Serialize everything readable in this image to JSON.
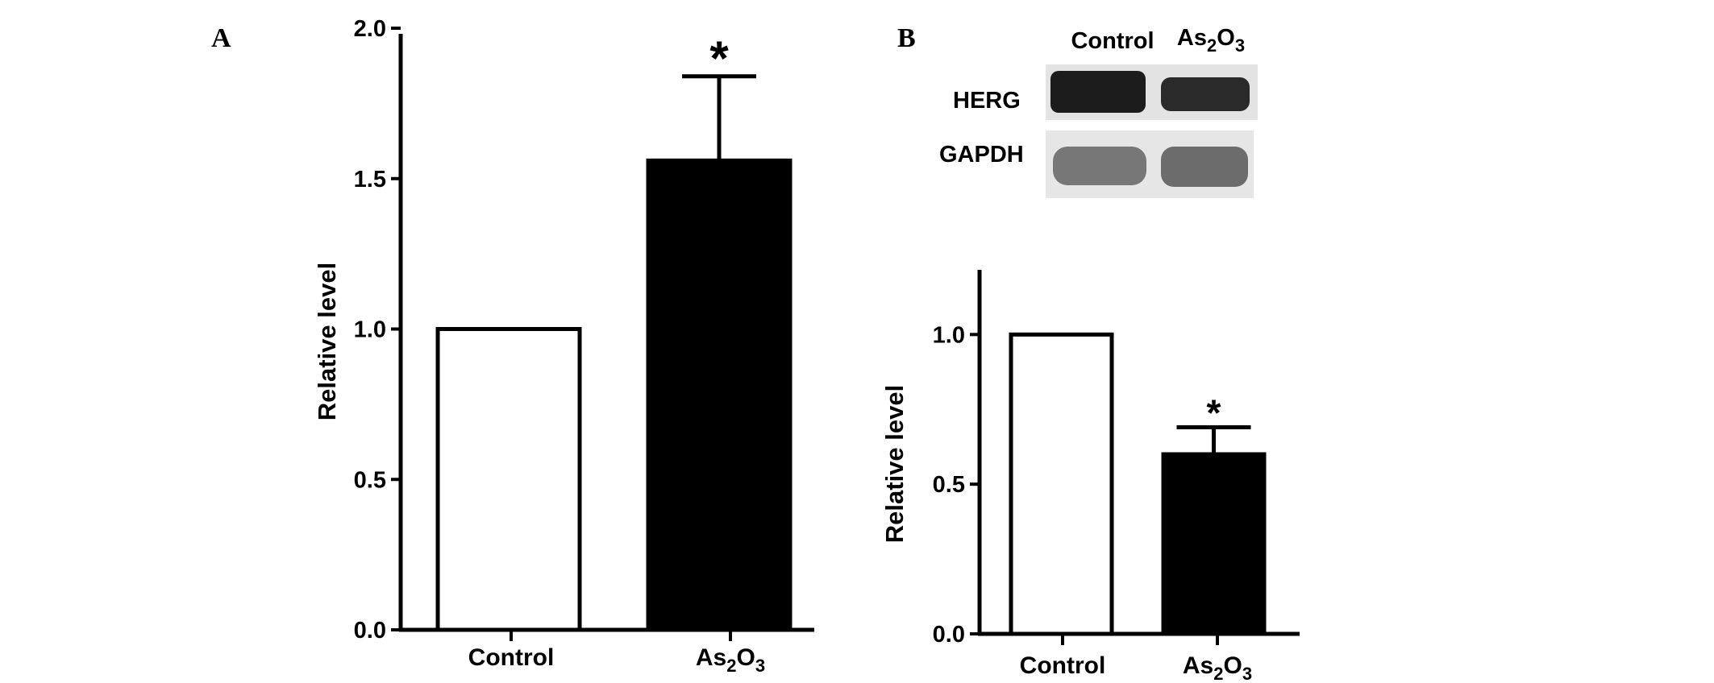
{
  "chart_data": [
    {
      "panel": "A",
      "type": "bar",
      "categories": [
        "Control",
        "As2O3"
      ],
      "values": [
        1.0,
        1.56
      ],
      "errors": [
        0,
        0.28
      ],
      "significance": [
        "",
        "*"
      ],
      "bar_colors": [
        "#ffffff",
        "#000000"
      ],
      "ylabel": "Relative level",
      "ylim": [
        0,
        2.0
      ],
      "yticks": [
        "0.0",
        "0.5",
        "1.0",
        "1.5",
        "2.0"
      ],
      "category_labels": [
        {
          "main": "Control",
          "sub": "",
          "tail": ""
        },
        {
          "main": "As",
          "sub": "2",
          "tail": "O",
          "sub2": "3"
        }
      ]
    },
    {
      "panel": "B",
      "type": "bar",
      "categories": [
        "Control",
        "As2O3"
      ],
      "values": [
        1.0,
        0.6
      ],
      "errors": [
        0,
        0.09
      ],
      "significance": [
        "",
        "*"
      ],
      "bar_colors": [
        "#ffffff",
        "#000000"
      ],
      "ylabel": "Relative level",
      "ylim": [
        0,
        1.2
      ],
      "yticks": [
        "0.0",
        "0.5",
        "1.0"
      ],
      "category_labels": [
        {
          "main": "Control",
          "sub": "",
          "tail": ""
        },
        {
          "main": "As",
          "sub": "2",
          "tail": "O",
          "sub2": "3"
        }
      ],
      "blot": {
        "lane_labels": [
          "Control",
          "As2O3"
        ],
        "rows": [
          "HERG",
          "GAPDH"
        ]
      }
    }
  ]
}
